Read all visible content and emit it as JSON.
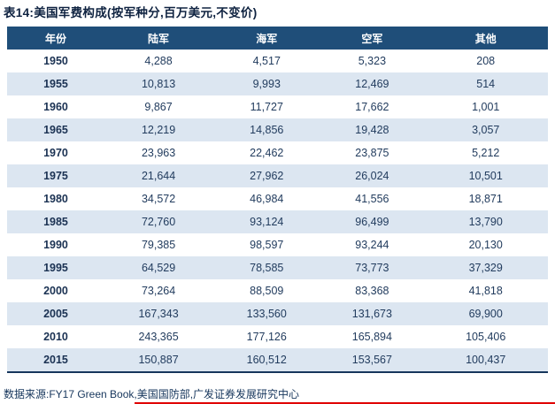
{
  "title": "表14:美国军费构成(按军种分,百万美元,不变价)",
  "table": {
    "columns": [
      "年份",
      "陆军",
      "海军",
      "空军",
      "其他"
    ],
    "rows": [
      [
        "1950",
        "4,288",
        "4,517",
        "5,323",
        "208"
      ],
      [
        "1955",
        "10,813",
        "9,993",
        "12,469",
        "514"
      ],
      [
        "1960",
        "9,867",
        "11,727",
        "17,662",
        "1,001"
      ],
      [
        "1965",
        "12,219",
        "14,856",
        "19,428",
        "3,057"
      ],
      [
        "1970",
        "23,963",
        "22,462",
        "23,875",
        "5,212"
      ],
      [
        "1975",
        "21,644",
        "27,962",
        "26,024",
        "10,501"
      ],
      [
        "1980",
        "34,572",
        "46,984",
        "41,556",
        "18,871"
      ],
      [
        "1985",
        "72,760",
        "93,124",
        "96,499",
        "13,790"
      ],
      [
        "1990",
        "79,385",
        "98,597",
        "93,244",
        "20,130"
      ],
      [
        "1995",
        "64,529",
        "78,585",
        "73,773",
        "37,329"
      ],
      [
        "2000",
        "73,264",
        "88,509",
        "83,368",
        "41,818"
      ],
      [
        "2005",
        "167,343",
        "133,560",
        "131,673",
        "69,900"
      ],
      [
        "2010",
        "243,365",
        "177,126",
        "165,894",
        "105,406"
      ],
      [
        "2015",
        "150,887",
        "160,512",
        "153,567",
        "100,437"
      ]
    ]
  },
  "footer": {
    "source": "数据来源:FY17 Green Book,美国国防部,广发证券发展研究中心"
  },
  "colors": {
    "header_bg": "#1F4E79",
    "row_alt_bg": "#DCE6F1",
    "text": "#223C5E",
    "bottom_border": "#16365C",
    "accent_red": "#E00000"
  }
}
